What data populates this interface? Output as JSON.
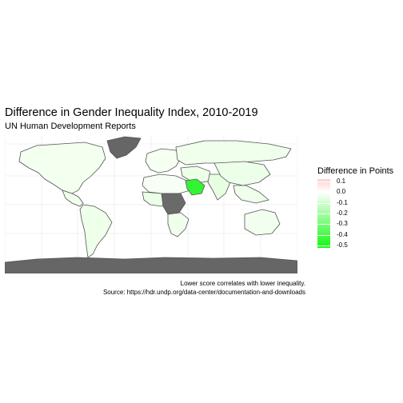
{
  "title": "Difference in Gender Inequality Index, 2010-2019",
  "subtitle": "UN Human Development Reports",
  "legend": {
    "title": "Difference in Points",
    "ticks": [
      "0.1",
      "0.0",
      "-0.1",
      "-0.2",
      "-0.3",
      "-0.4",
      "-0.5"
    ],
    "tick_values": [
      0.1,
      0.0,
      -0.1,
      -0.2,
      -0.3,
      -0.4,
      -0.5
    ],
    "range": [
      -0.52,
      0.12
    ],
    "colors": {
      "high": "#fcd0d0",
      "mid": "#ffffff",
      "low": "#12f812"
    }
  },
  "caption": {
    "line1": "Lower score correlates with lower inequality.",
    "line2": "Source: https://hdr.undp.org/data-center/documentation-and-downloads"
  },
  "map": {
    "no_data_color": "#666666",
    "border_color": "#555555",
    "grid_color": "#e6e6e6",
    "regions": [
      {
        "id": "greenland",
        "fill": "#666666"
      },
      {
        "id": "north-america",
        "fill": "#f3ffef"
      },
      {
        "id": "central-america",
        "fill": "#f0ffec"
      },
      {
        "id": "south-america",
        "fill": "#eeffea"
      },
      {
        "id": "europe",
        "fill": "#f5fff2"
      },
      {
        "id": "russia-north-asia",
        "fill": "#efffeb"
      },
      {
        "id": "north-africa",
        "fill": "#f7fff4"
      },
      {
        "id": "west-africa",
        "fill": "#eaffe5"
      },
      {
        "id": "central-africa",
        "fill": "#6a6a6a"
      },
      {
        "id": "southern-africa",
        "fill": "#f0ffec"
      },
      {
        "id": "middle-east",
        "fill": "#ecffe7"
      },
      {
        "id": "saudi-arabia",
        "fill": "#34f234"
      },
      {
        "id": "south-asia",
        "fill": "#e7ffe1"
      },
      {
        "id": "china-east-asia",
        "fill": "#ecffe8"
      },
      {
        "id": "southeast-asia",
        "fill": "#efffeb"
      },
      {
        "id": "australia",
        "fill": "#f2ffee"
      },
      {
        "id": "antarctica",
        "fill": "#666666"
      }
    ]
  }
}
